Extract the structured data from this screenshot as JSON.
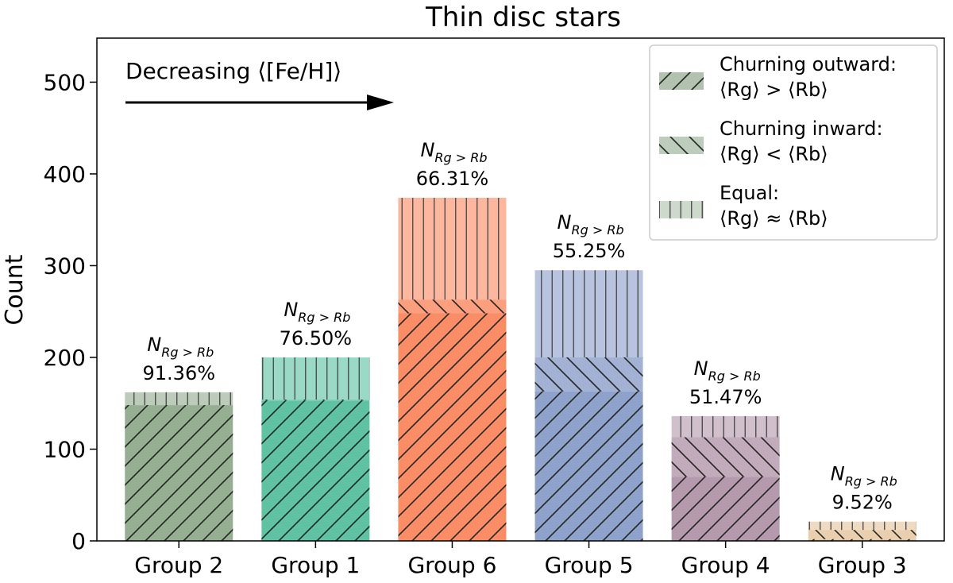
{
  "chart_data": {
    "type": "bar",
    "title": "Thin disc stars",
    "xlabel": "",
    "ylabel": "Count",
    "ylim": [
      0,
      548
    ],
    "yticks": [
      0,
      100,
      200,
      300,
      400,
      500
    ],
    "categories": [
      "Group 2",
      "Group 1",
      "Group 6",
      "Group 5",
      "Group 4",
      "Group 3"
    ],
    "colors": [
      "#94ad90",
      "#5cc2a1",
      "#fa8a63",
      "#8da0cb",
      "#b498ab",
      "#e5c49c"
    ],
    "series": [
      {
        "name": "Churning outward:",
        "hatch": "/",
        "values": [
          148,
          153,
          248,
          163,
          70,
          2
        ]
      },
      {
        "name": "Churning inward:",
        "hatch": "\\",
        "values": [
          0,
          1,
          15,
          37,
          43,
          10
        ]
      },
      {
        "name": "Equal:",
        "hatch": "|",
        "values": [
          14,
          46,
          111,
          95,
          23,
          9
        ]
      }
    ],
    "bar_label_prefix": "N",
    "bar_label_sub": "Rg > Rb",
    "bar_labels": [
      "91.36%",
      "76.50%",
      "66.31%",
      "55.25%",
      "51.47%",
      "9.52%"
    ],
    "annotation": "Decreasing ⟨[Fe/H]⟩",
    "legend": {
      "position": "upper right",
      "entries": [
        {
          "line1": "Churning outward:",
          "line2": "⟨Rg⟩ > ⟨Rb⟩"
        },
        {
          "line1": "Churning inward:",
          "line2": "⟨Rg⟩ < ⟨Rb⟩"
        },
        {
          "line1": "Equal:",
          "line2": "⟨Rg⟩ ≈ ⟨Rb⟩"
        }
      ]
    }
  }
}
